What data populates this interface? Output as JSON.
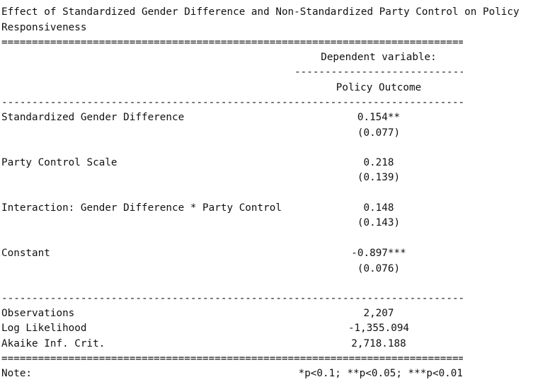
{
  "title_line1": "Effect of Standardized Gender Difference and Non-Standardized Party Control on Policy",
  "title_line2": "Responsiveness",
  "double_rule": "================================================================================================",
  "single_rule": "------------------------------------------------------------------------------------------------",
  "dependent_variable_header": "Dependent variable:",
  "dependent_variable": "Policy Outcome",
  "coefficients": [
    {
      "label": "Standardized Gender Difference",
      "estimate": "0.154**",
      "se": "(0.077)"
    },
    {
      "label": "Party Control Scale",
      "estimate": "0.218",
      "se": "(0.139)"
    },
    {
      "label": "Interaction: Gender Difference * Party Control",
      "estimate": "0.148",
      "se": "(0.143)"
    },
    {
      "label": "Constant",
      "estimate": "-0.897***",
      "se": "(0.076)"
    }
  ],
  "statistics": [
    {
      "label": "Observations",
      "value": "2,207"
    },
    {
      "label": "Log Likelihood",
      "value": "-1,355.094"
    },
    {
      "label": "Akaike Inf. Crit.",
      "value": "2,718.188"
    }
  ],
  "note_label": "Note:",
  "note_text": "*p<0.1; **p<0.05; ***p<0.01"
}
